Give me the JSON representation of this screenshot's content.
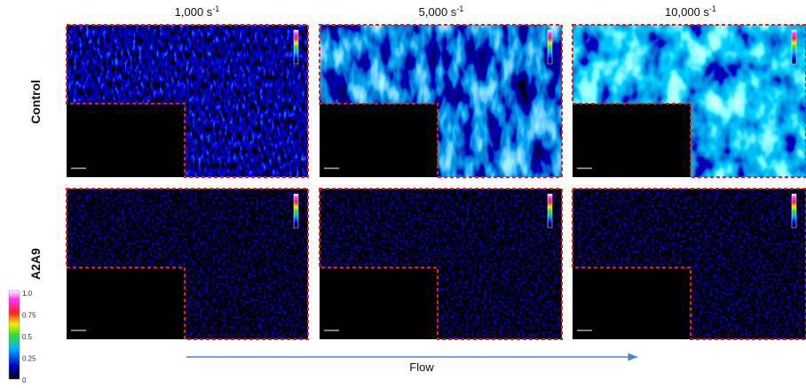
{
  "columns": [
    {
      "label": "1,000 s",
      "exponent": "-1"
    },
    {
      "label": "5,000 s",
      "exponent": "-1"
    },
    {
      "label": "10,000 s",
      "exponent": "-1"
    }
  ],
  "rows": [
    "Control",
    "A2A9"
  ],
  "colorbar": {
    "ticks": [
      "1.0",
      "0.75",
      "0.5",
      "0.25",
      "0"
    ]
  },
  "arrow": {
    "label": "Flow"
  }
}
